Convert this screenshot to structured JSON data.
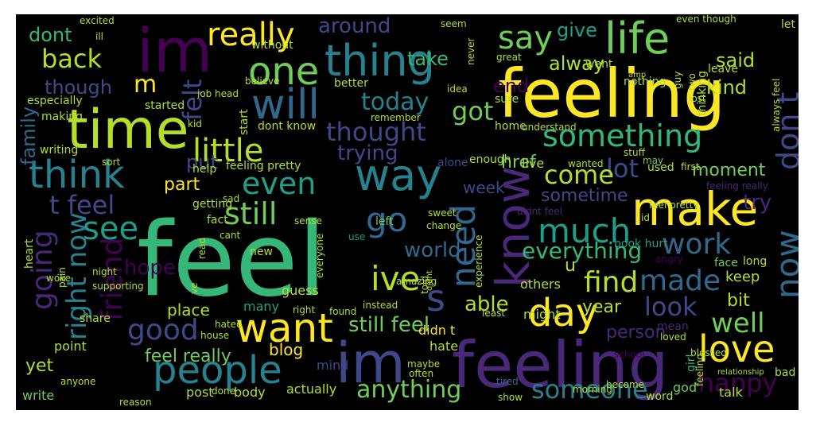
{
  "palette": {
    "yellow": "#fde725",
    "lime": "#b5de2b",
    "green": "#6ece58",
    "teal_green": "#35b779",
    "teal": "#1f9e89",
    "cyan": "#26828e",
    "blue": "#31688e",
    "indigo": "#3e4989",
    "violet": "#482878",
    "purple": "#440154",
    "background": "#000000"
  },
  "words": [
    {
      "text": "feel"
    },
    {
      "text": "feeling"
    },
    {
      "text": "feeling"
    },
    {
      "text": "im"
    },
    {
      "text": "im"
    },
    {
      "text": "time"
    },
    {
      "text": "make"
    },
    {
      "text": "want"
    },
    {
      "text": "know"
    },
    {
      "text": "people"
    },
    {
      "text": "thing"
    },
    {
      "text": "life"
    },
    {
      "text": "one"
    },
    {
      "text": "way"
    },
    {
      "text": "think"
    },
    {
      "text": "will"
    },
    {
      "text": "love"
    },
    {
      "text": "day"
    },
    {
      "text": "really"
    },
    {
      "text": "little"
    },
    {
      "text": "something"
    },
    {
      "text": "much"
    },
    {
      "text": "don t"
    },
    {
      "text": "now"
    },
    {
      "text": "need"
    },
    {
      "text": "go"
    },
    {
      "text": "even"
    },
    {
      "text": "still"
    },
    {
      "text": "see"
    },
    {
      "text": "work"
    },
    {
      "text": "say"
    },
    {
      "text": "made"
    },
    {
      "text": "look"
    },
    {
      "text": "find"
    },
    {
      "text": "ive"
    },
    {
      "text": "happy"
    },
    {
      "text": "someone"
    },
    {
      "text": "anything"
    },
    {
      "text": "good"
    },
    {
      "text": "well"
    },
    {
      "text": "friend"
    },
    {
      "text": "going"
    },
    {
      "text": "right now"
    },
    {
      "text": "t feel"
    },
    {
      "text": "back"
    },
    {
      "text": "thought"
    },
    {
      "text": "today"
    },
    {
      "text": "got"
    },
    {
      "text": "felt"
    },
    {
      "text": "lot"
    },
    {
      "text": "come"
    },
    {
      "text": "everything"
    },
    {
      "text": "s"
    },
    {
      "text": "trying"
    },
    {
      "text": "still feel"
    },
    {
      "text": "world"
    },
    {
      "text": "able"
    },
    {
      "text": "hope"
    },
    {
      "text": "kind"
    },
    {
      "text": "alway"
    },
    {
      "text": "said"
    },
    {
      "text": "give"
    },
    {
      "text": "around"
    },
    {
      "text": "take"
    },
    {
      "text": "dont"
    },
    {
      "text": "though"
    },
    {
      "text": "m"
    },
    {
      "text": "end"
    },
    {
      "text": "family"
    },
    {
      "text": "put"
    },
    {
      "text": "href"
    },
    {
      "text": "moment"
    },
    {
      "text": "sometime"
    },
    {
      "text": "try"
    },
    {
      "text": "week"
    },
    {
      "text": "part"
    },
    {
      "text": "person"
    },
    {
      "text": "year"
    },
    {
      "text": "bit"
    },
    {
      "text": "keep"
    },
    {
      "text": "u"
    },
    {
      "text": "yet"
    },
    {
      "text": "feel really"
    },
    {
      "text": "blog"
    },
    {
      "text": "hate"
    },
    {
      "text": "didn t"
    },
    {
      "text": "might"
    },
    {
      "text": "others"
    },
    {
      "text": "place"
    },
    {
      "text": "guess"
    },
    {
      "text": "many"
    },
    {
      "text": "mind"
    },
    {
      "text": "actually"
    },
    {
      "text": "body"
    },
    {
      "text": "post"
    },
    {
      "text": "done"
    },
    {
      "text": "write"
    },
    {
      "text": "point"
    },
    {
      "text": "share"
    },
    {
      "text": "talk"
    },
    {
      "text": "god"
    },
    {
      "text": "word"
    },
    {
      "text": "show"
    },
    {
      "text": "reason"
    },
    {
      "text": "maybe"
    },
    {
      "text": "often"
    },
    {
      "text": "become"
    },
    {
      "text": "tired"
    },
    {
      "text": "school"
    },
    {
      "text": "morning"
    },
    {
      "text": "blessed"
    },
    {
      "text": "girl"
    },
    {
      "text": "mean"
    },
    {
      "text": "loved"
    },
    {
      "text": "bad"
    },
    {
      "text": "relationship"
    },
    {
      "text": "face"
    },
    {
      "text": "long"
    },
    {
      "text": "angry"
    },
    {
      "text": "book hurt"
    },
    {
      "text": "didnt feel"
    },
    {
      "text": "id"
    },
    {
      "text": "feel pretty"
    },
    {
      "text": "feeling really"
    },
    {
      "text": "first"
    },
    {
      "text": "used"
    },
    {
      "text": "may"
    },
    {
      "text": "stuff"
    },
    {
      "text": "live"
    },
    {
      "text": "wanted"
    },
    {
      "text": "alone"
    },
    {
      "text": "enough"
    },
    {
      "text": "feeling pretty"
    },
    {
      "text": "help"
    },
    {
      "text": "sad"
    },
    {
      "text": "getting"
    },
    {
      "text": "fact"
    },
    {
      "text": "cant"
    },
    {
      "text": "new"
    },
    {
      "text": "read"
    },
    {
      "text": "left"
    },
    {
      "text": "use"
    },
    {
      "text": "change"
    },
    {
      "text": "sweet"
    },
    {
      "text": "everyone"
    },
    {
      "text": "experience"
    },
    {
      "text": "amazing"
    },
    {
      "text": "told"
    },
    {
      "text": "didnt"
    },
    {
      "text": "instead"
    },
    {
      "text": "least"
    },
    {
      "text": "found"
    },
    {
      "text": "right"
    },
    {
      "text": "hated"
    },
    {
      "text": "house"
    },
    {
      "text": "supporting"
    },
    {
      "text": "night"
    },
    {
      "text": "woke"
    },
    {
      "text": "pain"
    },
    {
      "text": "heart"
    },
    {
      "text": "anyone"
    },
    {
      "text": "ve"
    },
    {
      "text": "excited"
    },
    {
      "text": "ill"
    },
    {
      "text": "job"
    },
    {
      "text": "head"
    },
    {
      "text": "seem"
    },
    {
      "text": "never"
    },
    {
      "text": "went"
    },
    {
      "text": "great"
    },
    {
      "text": "amp"
    },
    {
      "text": "guy"
    },
    {
      "text": "two"
    },
    {
      "text": "lost"
    },
    {
      "text": "even though"
    },
    {
      "text": "let"
    },
    {
      "text": "leave"
    },
    {
      "text": "nothing"
    },
    {
      "text": "thinking"
    },
    {
      "text": "always feel"
    },
    {
      "text": "without"
    },
    {
      "text": "believe"
    },
    {
      "text": "better"
    },
    {
      "text": "remember"
    },
    {
      "text": "idea"
    },
    {
      "text": "sure"
    },
    {
      "text": "home"
    },
    {
      "text": "understand"
    },
    {
      "text": "especially"
    },
    {
      "text": "started"
    },
    {
      "text": "kid"
    },
    {
      "text": "start"
    },
    {
      "text": "dont know"
    },
    {
      "text": "making"
    },
    {
      "text": "writing"
    },
    {
      "text": "sort"
    },
    {
      "text": "sense"
    },
    {
      "text": "feeling"
    }
  ]
}
